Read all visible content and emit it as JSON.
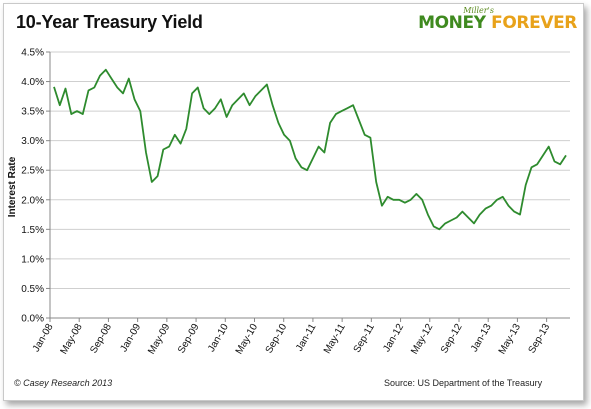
{
  "header": {
    "title": "10-Year Treasury Yield"
  },
  "logo": {
    "small": "Miller's",
    "word1": "MONEY",
    "word2": "FOREVER"
  },
  "footer": {
    "copyright": "© Casey Research 2013",
    "source": "Source: US Department of the Treasury"
  },
  "colors": {
    "line": "#2e8b2e",
    "grid": "#cfcfcf",
    "axis": "#888888"
  },
  "chart_data": {
    "type": "line",
    "title": "10-Year Treasury Yield",
    "xlabel": "",
    "ylabel": "Interest Rate",
    "ylim": [
      0,
      4.5
    ],
    "yticks": [
      "0.0%",
      "0.5%",
      "1.0%",
      "1.5%",
      "2.0%",
      "2.5%",
      "3.0%",
      "3.5%",
      "4.0%",
      "4.5%"
    ],
    "xticks": [
      "Jan-08",
      "May-08",
      "Sep-08",
      "Jan-09",
      "May-09",
      "Sep-09",
      "Jan-10",
      "May-10",
      "Sep-10",
      "Jan-11",
      "May-11",
      "Sep-11",
      "Jan-12",
      "May-12",
      "Sep-12",
      "Jan-13",
      "May-13",
      "Sep-13"
    ],
    "grid": true,
    "series": [
      {
        "values": [
          3.91,
          3.6,
          3.88,
          3.45,
          3.5,
          3.45,
          3.85,
          3.9,
          4.1,
          4.2,
          4.05,
          3.9,
          3.8,
          4.05,
          3.7,
          3.5,
          2.8,
          2.3,
          2.4,
          2.85,
          2.9,
          3.1,
          2.95,
          3.2,
          3.8,
          3.9,
          3.55,
          3.45,
          3.55,
          3.7,
          3.4,
          3.6,
          3.7,
          3.8,
          3.6,
          3.75,
          3.85,
          3.95,
          3.6,
          3.3,
          3.1,
          3.0,
          2.7,
          2.55,
          2.5,
          2.7,
          2.9,
          2.8,
          3.3,
          3.45,
          3.5,
          3.55,
          3.6,
          3.35,
          3.1,
          3.05,
          2.3,
          1.9,
          2.05,
          2.0,
          2.0,
          1.95,
          2.0,
          2.1,
          2.0,
          1.75,
          1.55,
          1.5,
          1.6,
          1.65,
          1.7,
          1.8,
          1.7,
          1.6,
          1.75,
          1.85,
          1.9,
          2.0,
          2.05,
          1.9,
          1.8,
          1.75,
          2.25,
          2.55,
          2.6,
          2.75,
          2.9,
          2.65,
          2.6,
          2.75
        ]
      }
    ]
  }
}
